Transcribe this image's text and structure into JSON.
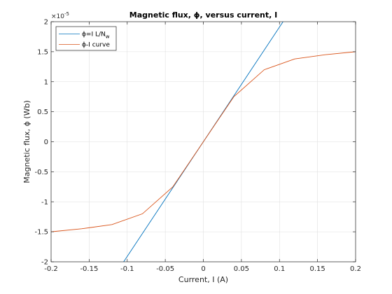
{
  "chart_data": {
    "type": "line",
    "title": "Magnetic flux, ϕ, versus current, I",
    "xlabel": "Current, I (A)",
    "ylabel": "Magnetic flux, ϕ (Wb)",
    "xlim": [
      -0.2,
      0.2
    ],
    "ylim": [
      -2,
      2
    ],
    "y_scale_label": "×10",
    "y_scale_exponent": "-5",
    "x_ticks": [
      -0.2,
      -0.15,
      -0.1,
      -0.05,
      0,
      0.05,
      0.1,
      0.15,
      0.2
    ],
    "x_tick_labels": [
      "-0.2",
      "-0.15",
      "-0.1",
      "-0.05",
      "0",
      "0.05",
      "0.1",
      "0.15",
      "0.2"
    ],
    "y_ticks": [
      -2,
      -1.5,
      -1,
      -0.5,
      0,
      0.5,
      1,
      1.5,
      2
    ],
    "y_tick_labels": [
      "-2",
      "-1.5",
      "-1",
      "-0.5",
      "0",
      "0.5",
      "1",
      "1.5",
      "2"
    ],
    "grid": true,
    "legend_position": "top-left",
    "series": [
      {
        "name": "ϕ=I L/N",
        "name_subscript": "w",
        "color": "#0072bd",
        "x": [
          -0.1047,
          0.1047
        ],
        "y": [
          -2,
          2
        ]
      },
      {
        "name": "ϕ-I curve",
        "color": "#d95319",
        "x": [
          -0.2,
          -0.16,
          -0.12,
          -0.08,
          -0.04,
          0,
          0.04,
          0.08,
          0.12,
          0.16,
          0.2
        ],
        "y": [
          -1.5,
          -1.45,
          -1.38,
          -1.2,
          -0.75,
          0,
          0.75,
          1.2,
          1.38,
          1.45,
          1.5
        ]
      }
    ]
  }
}
